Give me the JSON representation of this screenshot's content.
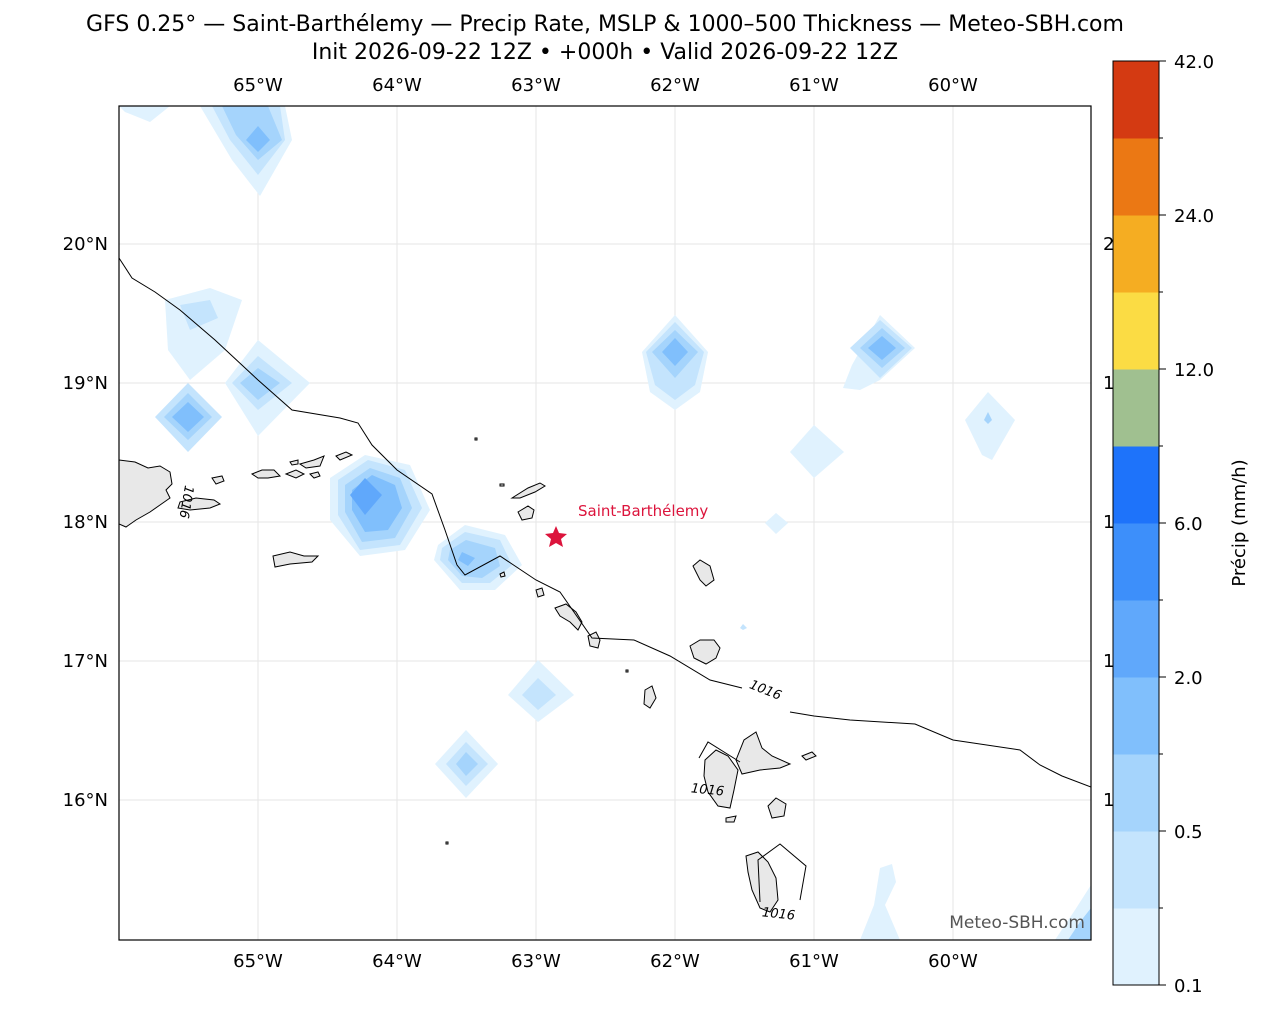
{
  "header": {
    "title_line1": "GFS 0.25° — Saint-Barthélemy — Precip Rate, MSLP & 1000–500 Thickness — Meteo-SBH.com",
    "title_line2": "Init 2026-09-22 12Z • +000h • Valid 2026-09-22 12Z"
  },
  "map": {
    "lon_ticks": [
      "65°W",
      "64°W",
      "63°W",
      "62°W",
      "61°W",
      "60°W"
    ],
    "lat_ticks": [
      "20°N",
      "19°N",
      "18°N",
      "17°N",
      "16°N"
    ],
    "right_lat_ticks_partial": [
      "2",
      "1",
      "1",
      "1",
      "1"
    ],
    "location_label": "Saint-Barthélemy",
    "location_marker_color": "#dc143c",
    "isobar_labels": [
      "1016",
      "1016",
      "1016",
      "1016"
    ],
    "watermark": "Meteo-SBH.com"
  },
  "colorbar": {
    "label": "Précip (mm/h)",
    "tick_labels": [
      "0.1",
      "0.5",
      "2.0",
      "6.0",
      "12.0",
      "24.0",
      "42.0"
    ],
    "colors": [
      "#e0f2fe",
      "#c4e4fd",
      "#a5d4fc",
      "#80bffc",
      "#60a8fb",
      "#3d8ffa",
      "#1e73fa",
      "#a0c090",
      "#fbdc44",
      "#f5ad22",
      "#eb7814",
      "#d43a12"
    ]
  }
}
